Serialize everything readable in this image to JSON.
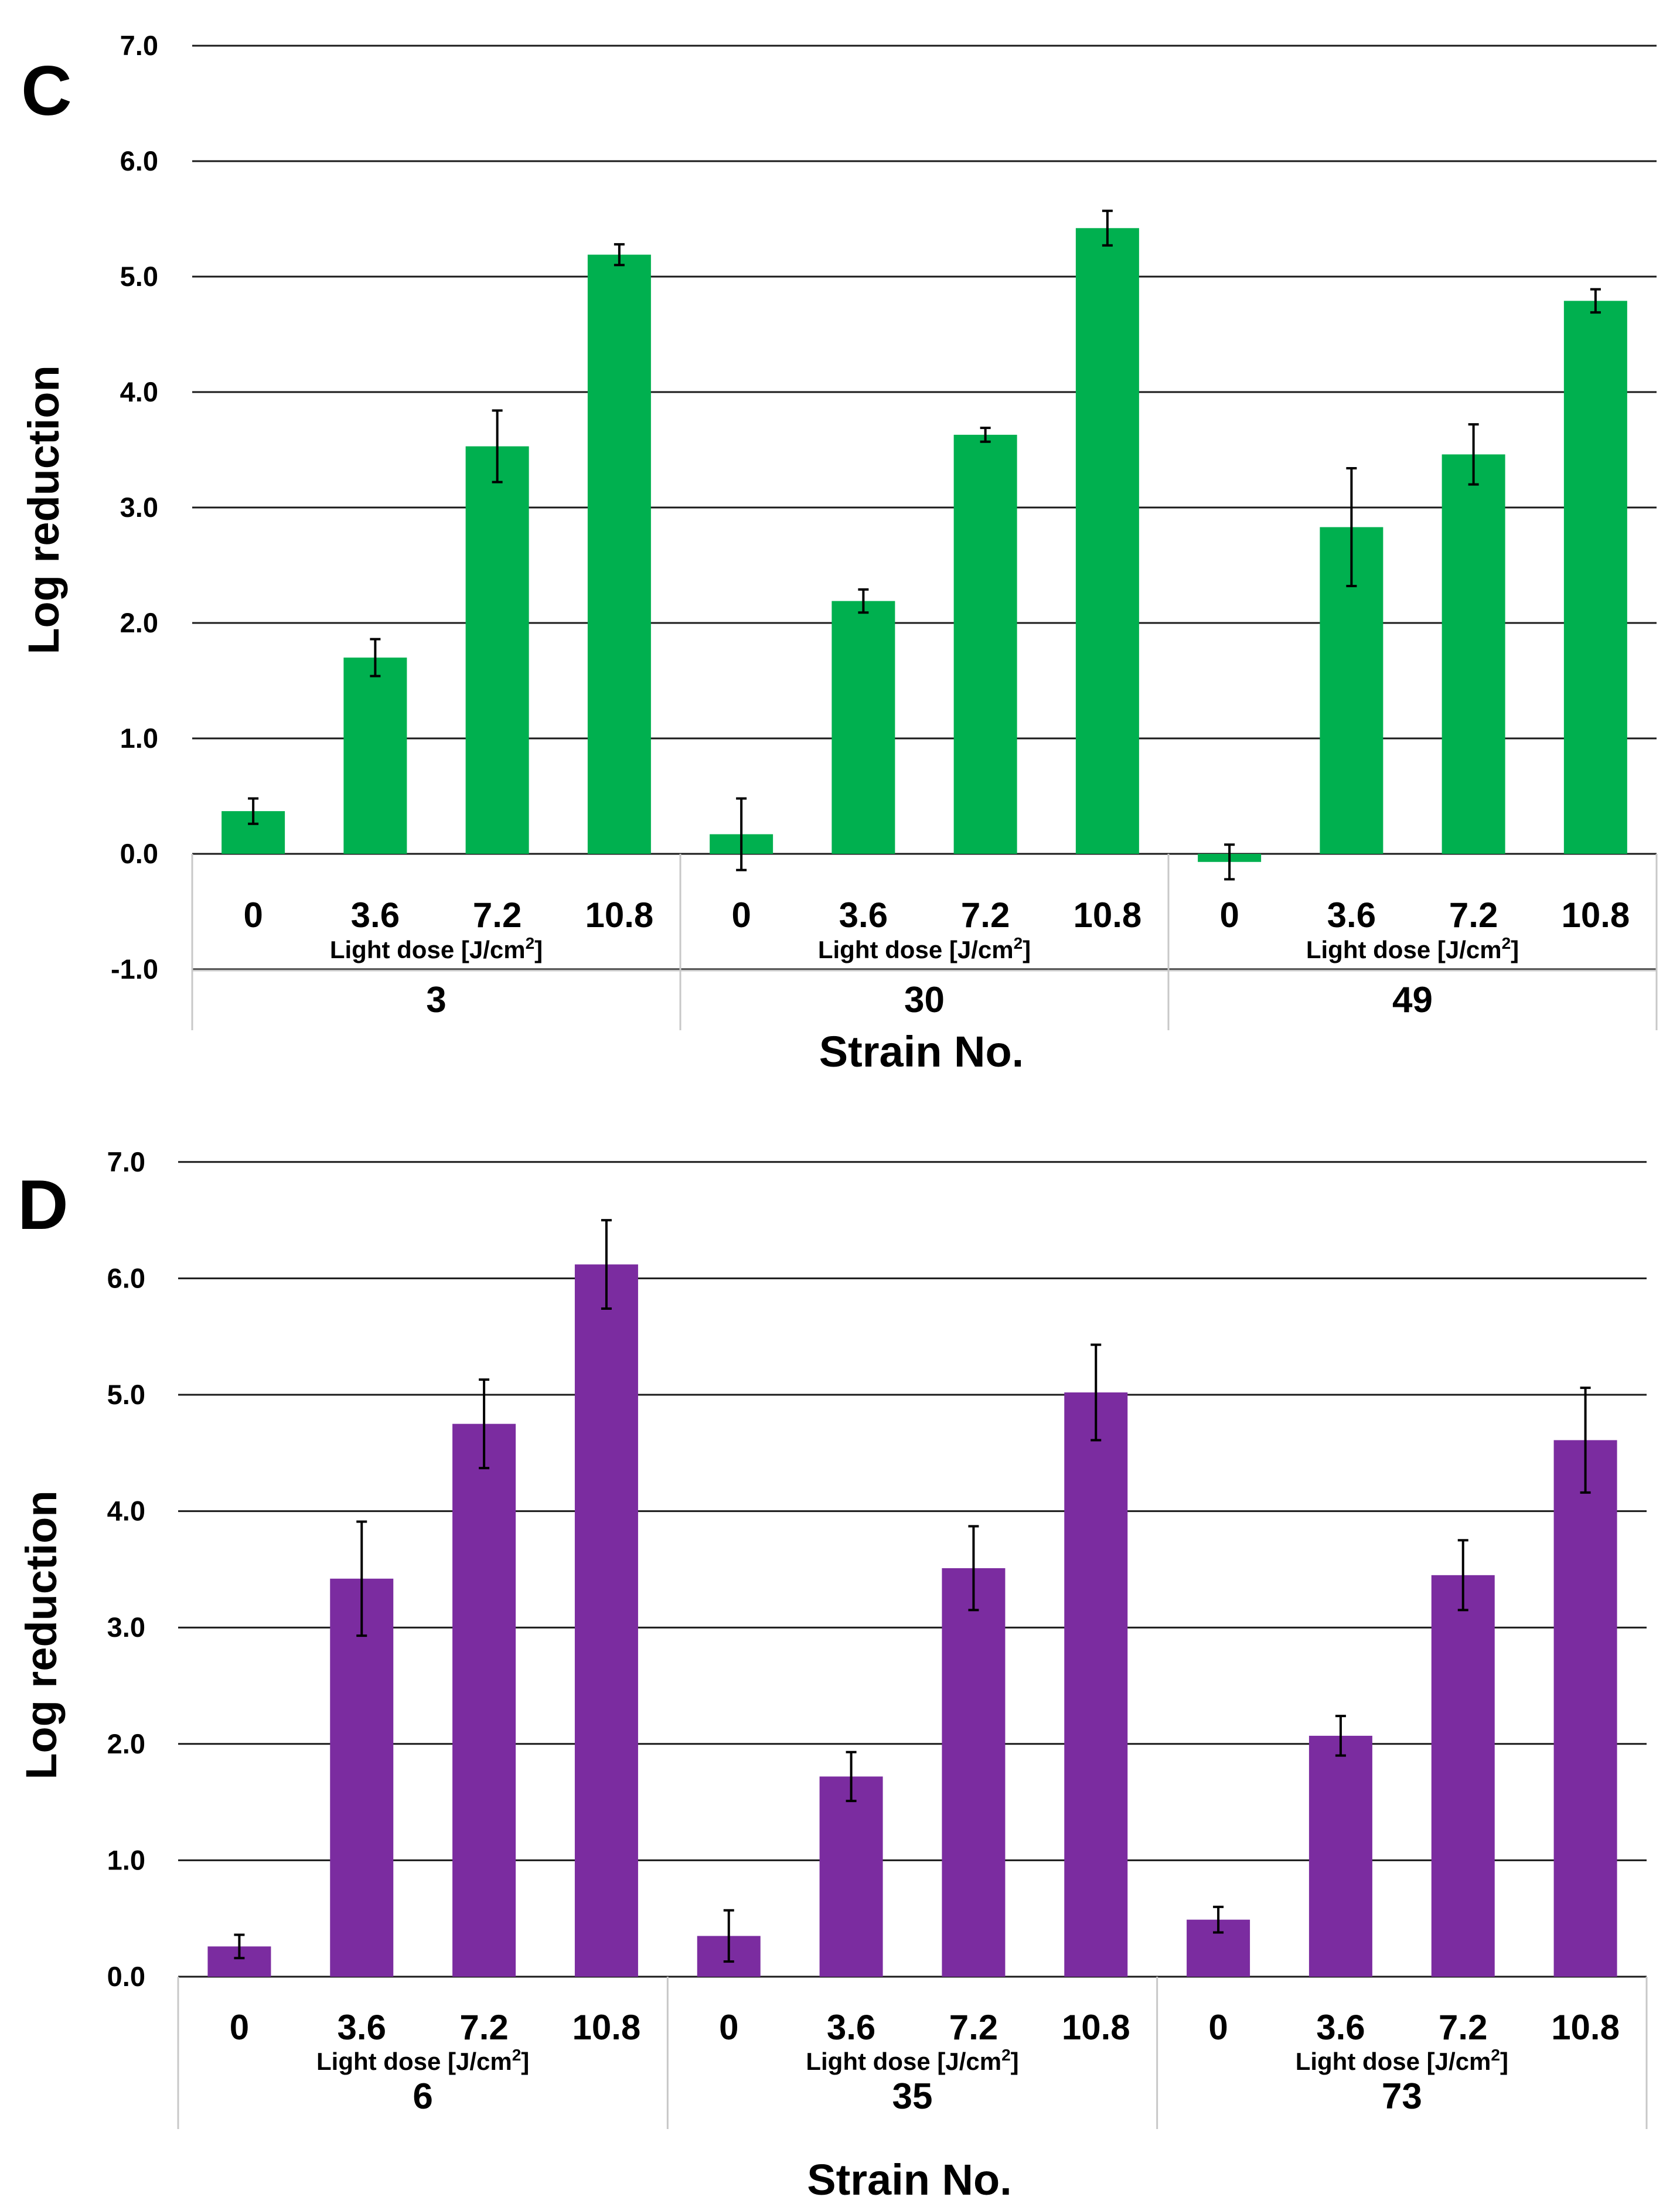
{
  "chart_data": [
    {
      "type": "bar",
      "panel_label": "C",
      "ylabel": "Log reduction",
      "xlabel": "Strain No.",
      "ylim": [
        -1.0,
        7.0
      ],
      "yticks": [
        "7.0",
        "6.0",
        "5.0",
        "4.0",
        "3.0",
        "2.0",
        "1.0",
        "0.0",
        "-1.0"
      ],
      "dose_label": "Light dose [J/cm",
      "dose_label_sup": "2",
      "dose_label_end": "]",
      "color": "#00b04f",
      "groups": [
        {
          "strain": "3",
          "doses": [
            "0",
            "3.6",
            "7.2",
            "10.8"
          ],
          "values": [
            0.37,
            1.7,
            3.53,
            5.19
          ],
          "errors": [
            0.11,
            0.16,
            0.31,
            0.09
          ]
        },
        {
          "strain": "30",
          "doses": [
            "0",
            "3.6",
            "7.2",
            "10.8"
          ],
          "values": [
            0.17,
            2.19,
            3.63,
            5.42
          ],
          "errors": [
            0.31,
            0.1,
            0.06,
            0.15
          ]
        },
        {
          "strain": "49",
          "doses": [
            "0",
            "3.6",
            "7.2",
            "10.8"
          ],
          "values": [
            -0.07,
            2.83,
            3.46,
            4.79
          ],
          "errors": [
            0.15,
            0.51,
            0.26,
            0.1
          ]
        }
      ]
    },
    {
      "type": "bar",
      "panel_label": "D",
      "ylabel": "Log reduction",
      "xlabel": "Strain No.",
      "ylim": [
        0.0,
        7.0
      ],
      "yticks": [
        "7.0",
        "6.0",
        "5.0",
        "4.0",
        "3.0",
        "2.0",
        "1.0",
        "0.0"
      ],
      "dose_label": "Light dose [J/cm",
      "dose_label_sup": "2",
      "dose_label_end": "]",
      "color": "#7b2ca0",
      "groups": [
        {
          "strain": "6",
          "doses": [
            "0",
            "3.6",
            "7.2",
            "10.8"
          ],
          "values": [
            0.26,
            3.42,
            4.75,
            6.12
          ],
          "errors": [
            0.1,
            0.49,
            0.38,
            0.38
          ]
        },
        {
          "strain": "35",
          "doses": [
            "0",
            "3.6",
            "7.2",
            "10.8"
          ],
          "values": [
            0.35,
            1.72,
            3.51,
            5.02
          ],
          "errors": [
            0.22,
            0.21,
            0.36,
            0.41
          ]
        },
        {
          "strain": "73",
          "doses": [
            "0",
            "3.6",
            "7.2",
            "10.8"
          ],
          "values": [
            0.49,
            2.07,
            3.45,
            4.61
          ],
          "errors": [
            0.11,
            0.17,
            0.3,
            0.45
          ]
        }
      ]
    }
  ]
}
